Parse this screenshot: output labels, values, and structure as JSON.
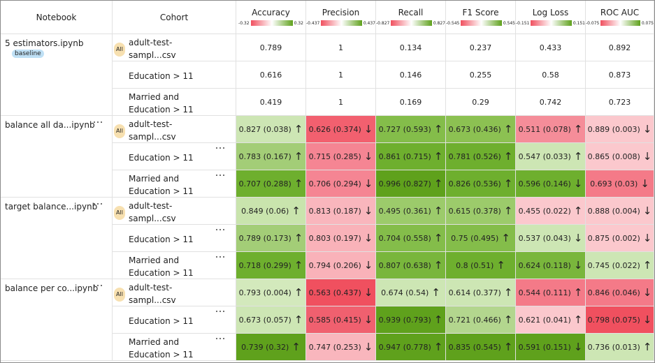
{
  "header": {
    "columns": [
      "Notebook",
      "Cohort"
    ],
    "metrics": [
      {
        "name": "Accuracy",
        "min": "-0.32",
        "max": "0.32"
      },
      {
        "name": "Precision",
        "min": "-0.437",
        "max": "0.437"
      },
      {
        "name": "Recall",
        "min": "-0.827",
        "max": "0.827"
      },
      {
        "name": "F1 Score",
        "min": "-0.545",
        "max": "0.545"
      },
      {
        "name": "Log Loss",
        "min": "-0.151",
        "max": "0.151"
      },
      {
        "name": "ROC AUC",
        "min": "-0.075",
        "max": "0.075"
      }
    ]
  },
  "groups": [
    {
      "notebook": "5 estimators.ipynb",
      "badge": "baseline",
      "rows": [
        {
          "badge": "All",
          "cohort": "adult-test-sampl...csv",
          "cells": [
            {
              "text": 0.789
            },
            {
              "text": 1
            },
            {
              "text": 0.134
            },
            {
              "text": 0.237
            },
            {
              "text": 0.433
            },
            {
              "text": 0.892
            }
          ]
        },
        {
          "cohort": "Education > 11",
          "cells": [
            {
              "text": 0.616
            },
            {
              "text": 1
            },
            {
              "text": 0.146
            },
            {
              "text": 0.255
            },
            {
              "text": 0.58
            },
            {
              "text": 0.873
            }
          ]
        },
        {
          "cohort": "Married and Education > 11",
          "cells": [
            {
              "text": 0.419
            },
            {
              "text": 1
            },
            {
              "text": 0.169
            },
            {
              "text": 0.29
            },
            {
              "text": 0.742
            },
            {
              "text": 0.723
            }
          ]
        }
      ]
    },
    {
      "notebook": "balance all da...ipynb",
      "rows": [
        {
          "badge": "All",
          "cohort": "adult-test-sampl...csv",
          "cells": [
            {
              "text": "0.827 (0.038)",
              "arrow": "↑",
              "color": "#cde6b4"
            },
            {
              "text": "0.626 (0.374)",
              "arrow": "↓",
              "color": "#f2606f"
            },
            {
              "text": "0.727 (0.593)",
              "arrow": "↑",
              "color": "#84bd4a"
            },
            {
              "text": "0.673 (0.436)",
              "arrow": "↑",
              "color": "#8cc152"
            },
            {
              "text": "0.511 (0.078)",
              "arrow": "↑",
              "color": "#f58d99"
            },
            {
              "text": "0.889 (0.003)",
              "arrow": "↓",
              "color": "#fbc8cd"
            }
          ]
        },
        {
          "cohort": "Education > 11",
          "cells": [
            {
              "text": "0.783 (0.167)",
              "arrow": "↑",
              "color": "#a3cd77"
            },
            {
              "text": "0.715 (0.285)",
              "arrow": "↓",
              "color": "#f58593"
            },
            {
              "text": "0.861 (0.715)",
              "arrow": "↑",
              "color": "#6eaf2e"
            },
            {
              "text": "0.781 (0.526)",
              "arrow": "↑",
              "color": "#6eaf2e"
            },
            {
              "text": "0.547 (0.033)",
              "arrow": "↑",
              "color": "#cde6b4"
            },
            {
              "text": "0.865 (0.008)",
              "arrow": "↓",
              "color": "#fbc8cd"
            }
          ]
        },
        {
          "cohort": "Married and Education > 11",
          "cells": [
            {
              "text": "0.707 (0.288)",
              "arrow": "↑",
              "color": "#6eaf2e"
            },
            {
              "text": "0.706 (0.294)",
              "arrow": "↓",
              "color": "#f58593"
            },
            {
              "text": "0.996 (0.827)",
              "arrow": "↑",
              "color": "#5fa11c"
            },
            {
              "text": "0.826 (0.536)",
              "arrow": "↑",
              "color": "#6eaf2e"
            },
            {
              "text": "0.596 (0.146)",
              "arrow": "↓",
              "color": "#6eaf2e"
            },
            {
              "text": "0.693 (0.03)",
              "arrow": "↓",
              "color": "#f47a88"
            }
          ]
        }
      ]
    },
    {
      "notebook": "target balance...ipynb",
      "rows": [
        {
          "badge": "All",
          "cohort": "adult-test-sampl...csv",
          "cells": [
            {
              "text": "0.849 (0.06)",
              "arrow": "↑",
              "color": "#c9e4ad"
            },
            {
              "text": "0.813 (0.187)",
              "arrow": "↓",
              "color": "#f9b6bd"
            },
            {
              "text": "0.495 (0.361)",
              "arrow": "↑",
              "color": "#9ccb6b"
            },
            {
              "text": "0.615 (0.378)",
              "arrow": "↑",
              "color": "#9ccb6b"
            },
            {
              "text": "0.455 (0.022)",
              "arrow": "↑",
              "color": "#fbc8cd"
            },
            {
              "text": "0.888 (0.004)",
              "arrow": "↓",
              "color": "#fbc8cd"
            }
          ]
        },
        {
          "cohort": "Education > 11",
          "cells": [
            {
              "text": "0.789 (0.173)",
              "arrow": "↑",
              "color": "#a3cd77"
            },
            {
              "text": "0.803 (0.197)",
              "arrow": "↓",
              "color": "#f9b2b9"
            },
            {
              "text": "0.704 (0.558)",
              "arrow": "↑",
              "color": "#84bd4a"
            },
            {
              "text": "0.75 (0.495)",
              "arrow": "↑",
              "color": "#84bd4a"
            },
            {
              "text": "0.537 (0.043)",
              "arrow": "↓",
              "color": "#cde6b4"
            },
            {
              "text": "0.875 (0.002)",
              "arrow": "↓",
              "color": "#fbc8cd"
            }
          ]
        },
        {
          "cohort": "Married and Education > 11",
          "cells": [
            {
              "text": "0.718 (0.299)",
              "arrow": "↑",
              "color": "#6eaf2e"
            },
            {
              "text": "0.794 (0.206)",
              "arrow": "↓",
              "color": "#f9b2b9"
            },
            {
              "text": "0.807 (0.638)",
              "arrow": "↑",
              "color": "#79b63c"
            },
            {
              "text": "0.8 (0.51)",
              "arrow": "↑",
              "color": "#6eaf2e"
            },
            {
              "text": "0.624 (0.118)",
              "arrow": "↓",
              "color": "#79b63c"
            },
            {
              "text": "0.745 (0.022)",
              "arrow": "↑",
              "color": "#cde6b4"
            }
          ]
        }
      ]
    },
    {
      "notebook": "balance per co...ipynb",
      "rows": [
        {
          "badge": "All",
          "cohort": "adult-test-sampl...csv",
          "cells": [
            {
              "text": "0.793 (0.004)",
              "arrow": "↑",
              "color": "#d3e9bc"
            },
            {
              "text": "0.563 (0.437)",
              "arrow": "↓",
              "color": "#f0505f"
            },
            {
              "text": "0.674 (0.54)",
              "arrow": "↑",
              "color": "#cde6b4"
            },
            {
              "text": "0.614 (0.377)",
              "arrow": "↑",
              "color": "#cde6b4"
            },
            {
              "text": "0.544 (0.111)",
              "arrow": "↑",
              "color": "#f47a88"
            },
            {
              "text": "0.846 (0.046)",
              "arrow": "↓",
              "color": "#f47a88"
            }
          ]
        },
        {
          "cohort": "Education > 11",
          "cells": [
            {
              "text": "0.673 (0.057)",
              "arrow": "↑",
              "color": "#cde6b4"
            },
            {
              "text": "0.585 (0.415)",
              "arrow": "↓",
              "color": "#f0606f"
            },
            {
              "text": "0.939 (0.793)",
              "arrow": "↑",
              "color": "#5fa11c"
            },
            {
              "text": "0.721 (0.466)",
              "arrow": "↑",
              "color": "#b3d68e"
            },
            {
              "text": "0.621 (0.041)",
              "arrow": "↑",
              "color": "#fbc8cd"
            },
            {
              "text": "0.798 (0.075)",
              "arrow": "↓",
              "color": "#f0505f"
            }
          ]
        },
        {
          "cohort": "Married and Education > 11",
          "cells": [
            {
              "text": "0.739 (0.32)",
              "arrow": "↑",
              "color": "#5fa11c"
            },
            {
              "text": "0.747 (0.253)",
              "arrow": "↓",
              "color": "#f9b6bd"
            },
            {
              "text": "0.947 (0.778)",
              "arrow": "↑",
              "color": "#5fa11c"
            },
            {
              "text": "0.835 (0.545)",
              "arrow": "↑",
              "color": "#5fa11c"
            },
            {
              "text": "0.591 (0.151)",
              "arrow": "↓",
              "color": "#5fa11c"
            },
            {
              "text": "0.736 (0.013)",
              "arrow": "↑",
              "color": "#cde6b4"
            }
          ]
        }
      ]
    }
  ]
}
